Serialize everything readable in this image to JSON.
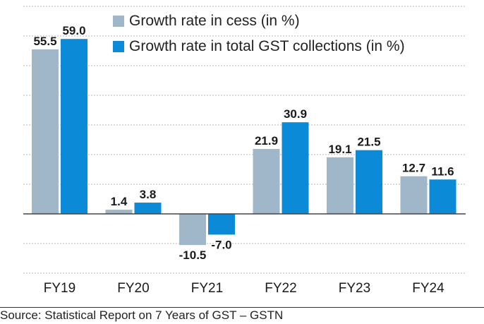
{
  "chart_data": {
    "type": "bar",
    "categories": [
      "FY19",
      "FY20",
      "FY21",
      "FY22",
      "FY23",
      "FY24"
    ],
    "series": [
      {
        "name": "Growth rate in cess (in %)",
        "color": "#9fb7c8",
        "values": [
          55.5,
          1.4,
          -10.5,
          21.9,
          19.1,
          12.7
        ]
      },
      {
        "name": "Growth rate in total GST collections (in %)",
        "color": "#0b8bd7",
        "values": [
          59.0,
          3.8,
          -7.0,
          30.9,
          21.5,
          11.6
        ]
      }
    ],
    "value_labels": [
      [
        "55.5",
        "1.4",
        "-10.5",
        "21.9",
        "19.1",
        "12.7"
      ],
      [
        "59.0",
        "3.8",
        "-7.0",
        "30.9",
        "21.5",
        "11.6"
      ]
    ],
    "ylim": [
      -20,
      70
    ],
    "grid": true,
    "legend_position": "top-center",
    "title": "",
    "xlabel": "",
    "ylabel": ""
  },
  "source": "Source: Statistical Report on 7 Years of GST – GSTN"
}
